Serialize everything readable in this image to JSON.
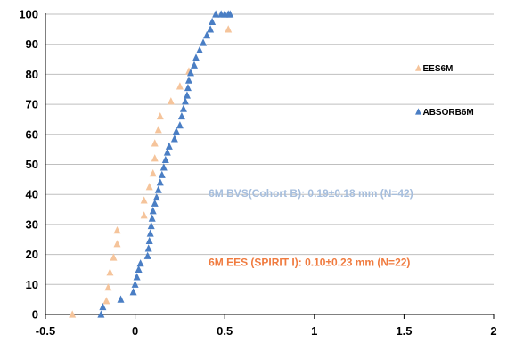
{
  "chart_data": {
    "type": "scatter",
    "title": "",
    "xlabel": "",
    "ylabel": "",
    "xlim": [
      -0.5,
      2
    ],
    "ylim": [
      0,
      100
    ],
    "x_ticks": [
      "-0.5",
      "0",
      "0.5",
      "1",
      "1.5",
      "2"
    ],
    "y_ticks": [
      "0",
      "10",
      "20",
      "30",
      "40",
      "50",
      "60",
      "70",
      "80",
      "90",
      "100"
    ],
    "grid": "horizontal",
    "legend_position": "right",
    "series": [
      {
        "name": "EES6M",
        "marker": "triangle",
        "color": "#f5c49b",
        "x": [
          -0.35,
          -0.16,
          -0.15,
          -0.14,
          -0.12,
          -0.1,
          -0.1,
          0.05,
          0.05,
          0.08,
          0.1,
          0.11,
          0.11,
          0.13,
          0.14,
          0.2,
          0.25,
          0.3,
          0.52
        ],
        "y": [
          0,
          4.5,
          9,
          14,
          19,
          23.5,
          28,
          33,
          38,
          42.5,
          47,
          52,
          57,
          61.5,
          66,
          71,
          76,
          81,
          95
        ]
      },
      {
        "name": "ABSORB6M",
        "marker": "triangle",
        "color": "#4a7ec4",
        "x": [
          -0.19,
          -0.18,
          -0.08,
          -0.01,
          0.0,
          0.01,
          0.02,
          0.03,
          0.07,
          0.075,
          0.08,
          0.085,
          0.09,
          0.095,
          0.1,
          0.11,
          0.12,
          0.13,
          0.14,
          0.15,
          0.16,
          0.17,
          0.18,
          0.19,
          0.22,
          0.23,
          0.25,
          0.26,
          0.27,
          0.28,
          0.29,
          0.295,
          0.3,
          0.31,
          0.33,
          0.34,
          0.36,
          0.38,
          0.4,
          0.42,
          0.43,
          0.45,
          0.48,
          0.5,
          0.52,
          0.53
        ],
        "y": [
          0,
          2.5,
          5,
          7.5,
          10,
          12.5,
          15,
          17,
          19.5,
          22,
          24.5,
          27,
          29.5,
          32,
          34.5,
          37,
          39,
          41.5,
          44,
          46.5,
          49,
          51.5,
          54,
          56,
          58.5,
          61,
          63,
          66,
          68.5,
          71,
          73,
          75.5,
          78,
          80.5,
          83,
          85.5,
          88,
          90.5,
          93,
          95,
          97.5,
          100,
          100,
          100,
          100,
          100
        ]
      }
    ],
    "annotations": [
      {
        "text": "6M BVS(Cohort B): 0.19±0.18 mm (N=42)",
        "color": "#a6bedd",
        "x": 0.4,
        "y": 40
      },
      {
        "text": "6M EES (SPIRIT I): 0.10±0.23 mm (N=22)",
        "color": "#f07b3f",
        "x": 0.4,
        "y": 17
      }
    ]
  },
  "legend": {
    "items": [
      "EES6M",
      "ABSORB6M"
    ]
  }
}
